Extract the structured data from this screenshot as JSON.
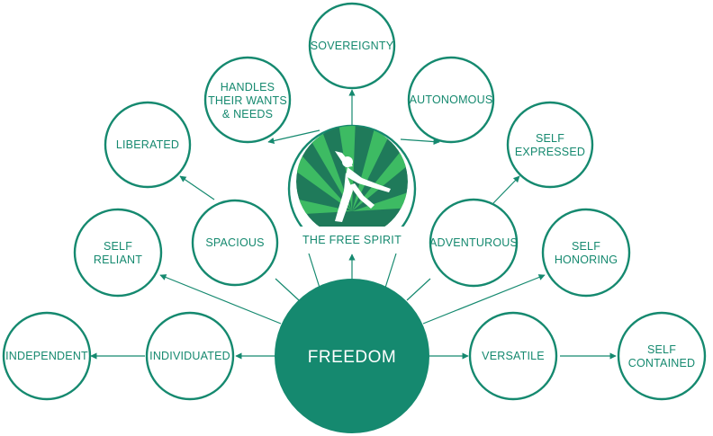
{
  "diagram": {
    "center": {
      "label": "FREEDOM"
    },
    "badge": {
      "label": "THE FREE SPIRIT"
    },
    "nodes": {
      "sovereignty": [
        "SOVEREIGNTY"
      ],
      "handles": [
        "HANDLES",
        "THEIR WANTS",
        "& NEEDS"
      ],
      "autonomous": [
        "AUTONOMOUS"
      ],
      "liberated": [
        "LIBERATED"
      ],
      "self_expressed": [
        "SELF",
        "EXPRESSED"
      ],
      "spacious": [
        "SPACIOUS"
      ],
      "adventurous": [
        "ADVENTUROUS"
      ],
      "self_reliant": [
        "SELF",
        "RELIANT"
      ],
      "self_honoring": [
        "SELF",
        "HONORING"
      ],
      "independent": [
        "INDEPENDENT"
      ],
      "individuated": [
        "INDIVIDUATED"
      ],
      "versatile": [
        "VERSATILE"
      ],
      "self_contained": [
        "SELF",
        "CONTAINED"
      ]
    }
  },
  "colors": {
    "primary": "#15896f",
    "badge_dark": "#1f7a5a",
    "badge_light": "#3dbb63"
  }
}
